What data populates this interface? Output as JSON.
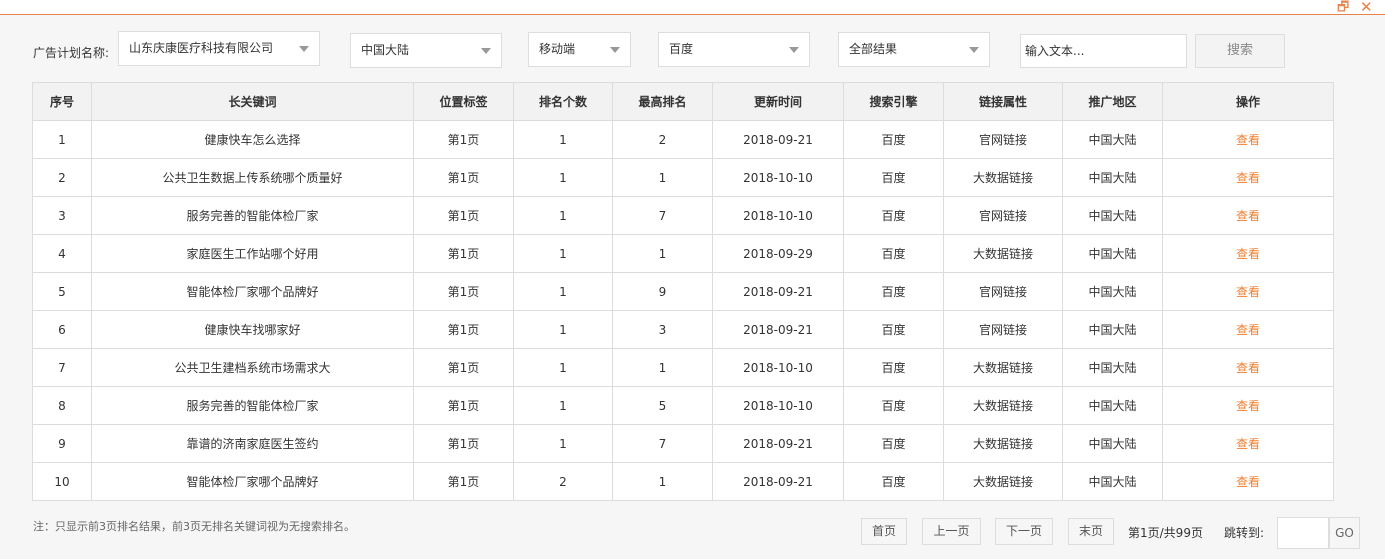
{
  "window": {
    "restore_icon": "restore-icon",
    "close_icon": "close-icon"
  },
  "filters": {
    "plan_label": "广告计划名称:",
    "plan": "山东庆康医疗科技有限公司",
    "region": "中国大陆",
    "device": "移动端",
    "engine": "百度",
    "result": "全部结果",
    "search_placeholder": "输入文本...",
    "search_button": "搜索"
  },
  "table": {
    "headers": [
      "序号",
      "长关键词",
      "位置标签",
      "排名个数",
      "最高排名",
      "更新时间",
      "搜索引擎",
      "链接属性",
      "推广地区",
      "操作"
    ],
    "rows": [
      [
        "1",
        "健康快车怎么选择",
        "第1页",
        "1",
        "2",
        "2018-09-21",
        "百度",
        "官网链接",
        "中国大陆",
        "查看"
      ],
      [
        "2",
        "公共卫生数据上传系统哪个质量好",
        "第1页",
        "1",
        "1",
        "2018-10-10",
        "百度",
        "大数据链接",
        "中国大陆",
        "查看"
      ],
      [
        "3",
        "服务完善的智能体检厂家",
        "第1页",
        "1",
        "7",
        "2018-10-10",
        "百度",
        "官网链接",
        "中国大陆",
        "查看"
      ],
      [
        "4",
        "家庭医生工作站哪个好用",
        "第1页",
        "1",
        "1",
        "2018-09-29",
        "百度",
        "大数据链接",
        "中国大陆",
        "查看"
      ],
      [
        "5",
        "智能体检厂家哪个品牌好",
        "第1页",
        "1",
        "9",
        "2018-09-21",
        "百度",
        "官网链接",
        "中国大陆",
        "查看"
      ],
      [
        "6",
        "健康快车找哪家好",
        "第1页",
        "1",
        "3",
        "2018-09-21",
        "百度",
        "官网链接",
        "中国大陆",
        "查看"
      ],
      [
        "7",
        "公共卫生建档系统市场需求大",
        "第1页",
        "1",
        "1",
        "2018-10-10",
        "百度",
        "大数据链接",
        "中国大陆",
        "查看"
      ],
      [
        "8",
        "服务完善的智能体检厂家",
        "第1页",
        "1",
        "5",
        "2018-10-10",
        "百度",
        "大数据链接",
        "中国大陆",
        "查看"
      ],
      [
        "9",
        "靠谱的济南家庭医生签约",
        "第1页",
        "1",
        "7",
        "2018-09-21",
        "百度",
        "大数据链接",
        "中国大陆",
        "查看"
      ],
      [
        "10",
        "智能体检厂家哪个品牌好",
        "第1页",
        "2",
        "1",
        "2018-09-21",
        "百度",
        "大数据链接",
        "中国大陆",
        "查看"
      ]
    ]
  },
  "footer": {
    "note": "注：只显示前3页排名结果，前3页无排名关键词视为无搜索排名。",
    "first": "首页",
    "prev": "上一页",
    "next": "下一页",
    "last": "末页",
    "page_info": "第1页/共99页",
    "jump_label": "跳转到:",
    "go": "GO"
  },
  "colors": {
    "accent": "#f08030"
  }
}
